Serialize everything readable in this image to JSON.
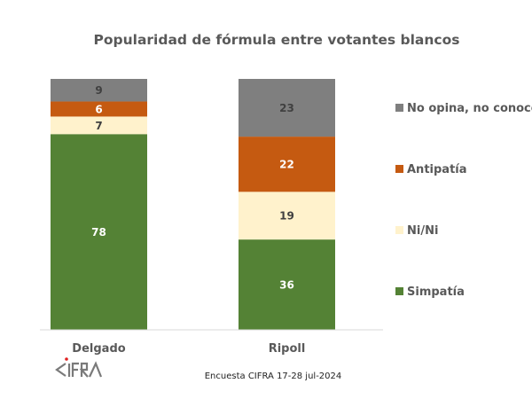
{
  "chart_data": {
    "type": "bar",
    "stacked": true,
    "title": "Popularidad de fórmula entre votantes blancos",
    "categories": [
      "Delgado",
      "Ripoll"
    ],
    "series": [
      {
        "name": "Simpatía",
        "color": "#548235",
        "label_color": "#ffffff",
        "values": [
          78,
          36
        ]
      },
      {
        "name": "Ni/Ni",
        "color": "#fff2cc",
        "label_color": "#404040",
        "values": [
          7,
          19
        ]
      },
      {
        "name": "Antipatía",
        "color": "#c55a11",
        "label_color": "#ffffff",
        "values": [
          6,
          22
        ]
      },
      {
        "name": "No opina, no conoce",
        "color": "#7f7f7f",
        "label_color": "#404040",
        "values": [
          9,
          23
        ]
      }
    ],
    "ylim": [
      0,
      100
    ],
    "xlabel": "",
    "ylabel": "",
    "grid": false,
    "legend_position": "right"
  },
  "source": "Encuesta CIFRA 17-28 jul-2024",
  "logo_text": "CIFRA"
}
